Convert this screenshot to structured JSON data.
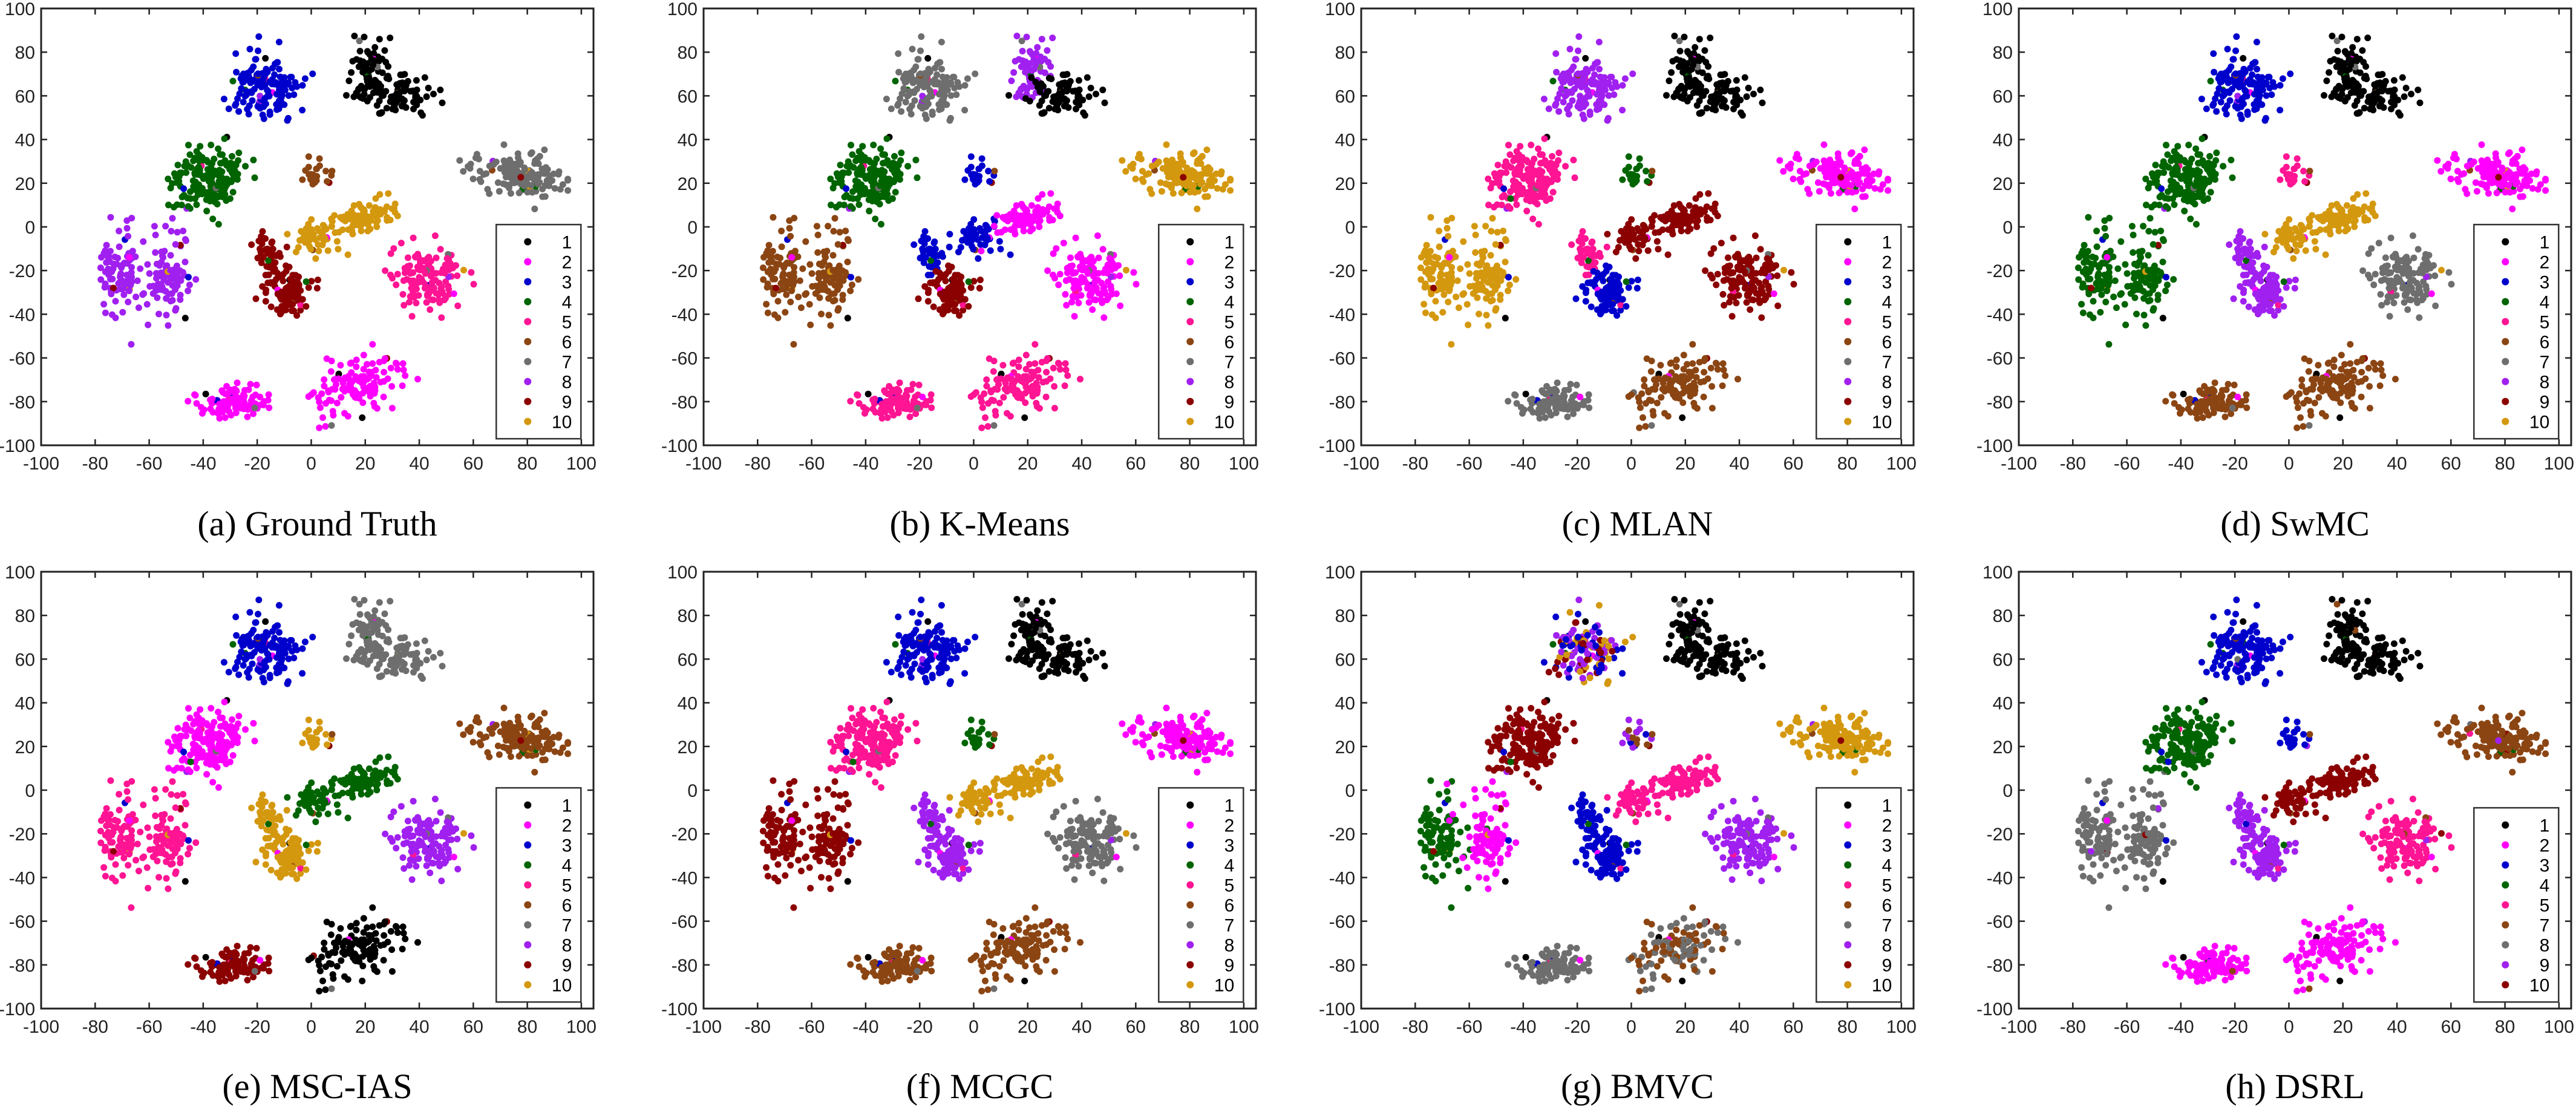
{
  "shared_embedding": {
    "note_units": "t-SNE coordinates",
    "clusters": {
      "R1a": {
        "center": [
          21,
          71
        ],
        "spread": [
          5,
          9
        ],
        "rotation": 0,
        "count": 70
      },
      "R1b": {
        "center": [
          33,
          60
        ],
        "spread": [
          7,
          6
        ],
        "rotation": 0,
        "count": 80
      },
      "R2": {
        "center": [
          -17,
          64
        ],
        "spread": [
          7,
          8
        ],
        "rotation": 0,
        "count": 140
      },
      "R3": {
        "center": [
          76,
          24
        ],
        "spread": [
          11,
          6
        ],
        "rotation": -12,
        "count": 150
      },
      "R4": {
        "center": [
          -38,
          21
        ],
        "spread": [
          8,
          9
        ],
        "rotation": -20,
        "count": 170
      },
      "R5": {
        "center": [
          1,
          25
        ],
        "spread": [
          3.5,
          3.5
        ],
        "rotation": 0,
        "count": 22
      },
      "R6a": {
        "center": [
          2,
          -4
        ],
        "spread": [
          5,
          4
        ],
        "rotation": 20,
        "count": 50
      },
      "R6b": {
        "center": [
          20,
          4
        ],
        "spread": [
          8,
          4
        ],
        "rotation": 25,
        "count": 80
      },
      "R7": {
        "center": [
          43,
          -22
        ],
        "spread": [
          8,
          9
        ],
        "rotation": 0,
        "count": 140
      },
      "R8a": {
        "center": [
          -16,
          -12
        ],
        "spread": [
          3.5,
          5
        ],
        "rotation": 0,
        "count": 40
      },
      "R8b": {
        "center": [
          -8,
          -31
        ],
        "spread": [
          5,
          6
        ],
        "rotation": 0,
        "count": 100
      },
      "R9a": {
        "center": [
          -70,
          -20
        ],
        "spread": [
          6,
          12
        ],
        "rotation": 0,
        "count": 90
      },
      "R9b": {
        "center": [
          -53,
          -22
        ],
        "spread": [
          6,
          12
        ],
        "rotation": 0,
        "count": 90
      },
      "R10a": {
        "center": [
          -28,
          -80
        ],
        "spread": [
          9,
          4
        ],
        "rotation": 10,
        "count": 100
      },
      "R10b": {
        "center": [
          17,
          -72
        ],
        "spread": [
          11,
          7
        ],
        "rotation": 35,
        "count": 120
      }
    }
  },
  "chart_data": [
    {
      "type": "scatter",
      "caption": "(a) Ground Truth",
      "xlim": [
        -100,
        100
      ],
      "ylim": [
        -100,
        100
      ],
      "xticks": [
        "-100",
        "-80",
        "-60",
        "-40",
        "-20",
        "0",
        "20",
        "40",
        "60",
        "80",
        "100"
      ],
      "yticks": [
        "100",
        "80",
        "60",
        "40",
        "20",
        "0",
        "-20",
        "-40",
        "-60",
        "-80",
        "-100"
      ],
      "grid": false,
      "legend": {
        "placement": "bottom-right",
        "entries": [
          {
            "label": "1",
            "color": "#000000"
          },
          {
            "label": "2",
            "color": "#ff00ff"
          },
          {
            "label": "3",
            "color": "#0000cd"
          },
          {
            "label": "4",
            "color": "#006400"
          },
          {
            "label": "5",
            "color": "#ff1493"
          },
          {
            "label": "6",
            "color": "#8b4513"
          },
          {
            "label": "7",
            "color": "#6e6e6e"
          },
          {
            "label": "8",
            "color": "#a020f0"
          },
          {
            "label": "9",
            "color": "#8b0000"
          },
          {
            "label": "10",
            "color": "#d4980f"
          }
        ]
      },
      "cluster_labels": {
        "R1a": "1",
        "R1b": "1",
        "R2": "3",
        "R3": "7",
        "R4": "4",
        "R5": "6",
        "R6a": "10",
        "R6b": "10",
        "R7": "5",
        "R8a": "9",
        "R8b": "9",
        "R9a": "8",
        "R9b": "8",
        "R10a": "2",
        "R10b": "2"
      }
    },
    {
      "type": "scatter",
      "caption": "(b) K-Means",
      "xlim": [
        -100,
        100
      ],
      "ylim": [
        -100,
        100
      ],
      "xticks": [
        "-100",
        "-80",
        "-60",
        "-40",
        "-20",
        "0",
        "20",
        "40",
        "60",
        "80",
        "100"
      ],
      "yticks": [
        "100",
        "80",
        "60",
        "40",
        "20",
        "0",
        "-20",
        "-40",
        "-60",
        "-80",
        "-100"
      ],
      "grid": false,
      "legend": {
        "placement": "bottom-right",
        "entries": [
          {
            "label": "1",
            "color": "#000000"
          },
          {
            "label": "2",
            "color": "#ff00ff"
          },
          {
            "label": "3",
            "color": "#0000cd"
          },
          {
            "label": "4",
            "color": "#006400"
          },
          {
            "label": "5",
            "color": "#ff1493"
          },
          {
            "label": "6",
            "color": "#8b4513"
          },
          {
            "label": "7",
            "color": "#6e6e6e"
          },
          {
            "label": "8",
            "color": "#a020f0"
          },
          {
            "label": "9",
            "color": "#8b0000"
          },
          {
            "label": "10",
            "color": "#d4980f"
          }
        ]
      },
      "cluster_labels": {
        "R1a": "8",
        "R1b": "1",
        "R2": "7",
        "R3": "10",
        "R4": "4",
        "R5": "3",
        "R6a": "3",
        "R6b": "2",
        "R7": "2",
        "R8a": "3",
        "R8b": "9",
        "R9a": "6",
        "R9b": "6",
        "R10a": "5",
        "R10b": "5"
      }
    },
    {
      "type": "scatter",
      "caption": "(c) MLAN",
      "xlim": [
        -100,
        100
      ],
      "ylim": [
        -100,
        100
      ],
      "xticks": [
        "-100",
        "-80",
        "-60",
        "-40",
        "-20",
        "0",
        "20",
        "40",
        "60",
        "80",
        "100"
      ],
      "yticks": [
        "100",
        "80",
        "60",
        "40",
        "20",
        "0",
        "-20",
        "-40",
        "-60",
        "-80",
        "-100"
      ],
      "grid": false,
      "legend": {
        "placement": "bottom-right",
        "entries": [
          {
            "label": "1",
            "color": "#000000"
          },
          {
            "label": "2",
            "color": "#ff00ff"
          },
          {
            "label": "3",
            "color": "#0000cd"
          },
          {
            "label": "4",
            "color": "#006400"
          },
          {
            "label": "5",
            "color": "#ff1493"
          },
          {
            "label": "6",
            "color": "#8b4513"
          },
          {
            "label": "7",
            "color": "#6e6e6e"
          },
          {
            "label": "8",
            "color": "#a020f0"
          },
          {
            "label": "9",
            "color": "#8b0000"
          },
          {
            "label": "10",
            "color": "#d4980f"
          }
        ]
      },
      "cluster_labels": {
        "R1a": "1",
        "R1b": "1",
        "R2": "8",
        "R3": "2",
        "R4": "5",
        "R5": "4",
        "R6a": "9",
        "R6b": "9",
        "R7": "9",
        "R8a": "5",
        "R8b": "3",
        "R9a": "10",
        "R9b": "10",
        "R10a": "7",
        "R10b": "6"
      }
    },
    {
      "type": "scatter",
      "caption": "(d) SwMC",
      "xlim": [
        -100,
        100
      ],
      "ylim": [
        -100,
        100
      ],
      "xticks": [
        "-100",
        "-80",
        "-60",
        "-40",
        "-20",
        "0",
        "20",
        "40",
        "60",
        "80",
        "100"
      ],
      "yticks": [
        "100",
        "80",
        "60",
        "40",
        "20",
        "0",
        "-20",
        "-40",
        "-60",
        "-80",
        "-100"
      ],
      "grid": false,
      "legend": {
        "placement": "bottom-right",
        "entries": [
          {
            "label": "1",
            "color": "#000000"
          },
          {
            "label": "2",
            "color": "#ff00ff"
          },
          {
            "label": "3",
            "color": "#0000cd"
          },
          {
            "label": "4",
            "color": "#006400"
          },
          {
            "label": "5",
            "color": "#ff1493"
          },
          {
            "label": "6",
            "color": "#8b4513"
          },
          {
            "label": "7",
            "color": "#6e6e6e"
          },
          {
            "label": "8",
            "color": "#a020f0"
          },
          {
            "label": "9",
            "color": "#8b0000"
          },
          {
            "label": "10",
            "color": "#d4980f"
          }
        ]
      },
      "cluster_labels": {
        "R1a": "1",
        "R1b": "1",
        "R2": "3",
        "R3": "2",
        "R4": "4",
        "R5": "5",
        "R6a": "10",
        "R6b": "10",
        "R7": "7",
        "R8a": "8",
        "R8b": "8",
        "R9a": "4",
        "R9b": "4",
        "R10a": "6",
        "R10b": "6"
      }
    },
    {
      "type": "scatter",
      "caption": "(e) MSC-IAS",
      "xlim": [
        -100,
        100
      ],
      "ylim": [
        -100,
        100
      ],
      "xticks": [
        "-100",
        "-80",
        "-60",
        "-40",
        "-20",
        "0",
        "20",
        "40",
        "60",
        "80",
        "100"
      ],
      "yticks": [
        "100",
        "80",
        "60",
        "40",
        "20",
        "0",
        "-20",
        "-40",
        "-60",
        "-80",
        "-100"
      ],
      "grid": false,
      "legend": {
        "placement": "bottom-right",
        "entries": [
          {
            "label": "1",
            "color": "#000000"
          },
          {
            "label": "2",
            "color": "#ff00ff"
          },
          {
            "label": "3",
            "color": "#0000cd"
          },
          {
            "label": "4",
            "color": "#006400"
          },
          {
            "label": "5",
            "color": "#ff1493"
          },
          {
            "label": "6",
            "color": "#8b4513"
          },
          {
            "label": "7",
            "color": "#6e6e6e"
          },
          {
            "label": "8",
            "color": "#a020f0"
          },
          {
            "label": "9",
            "color": "#8b0000"
          },
          {
            "label": "10",
            "color": "#d4980f"
          }
        ]
      },
      "cluster_labels": {
        "R1a": "7",
        "R1b": "7",
        "R2": "3",
        "R3": "6",
        "R4": "2",
        "R5": "10",
        "R6a": "4",
        "R6b": "4",
        "R7": "8",
        "R8a": "10",
        "R8b": "10",
        "R9a": "5",
        "R9b": "5",
        "R10a": "9",
        "R10b": "1"
      }
    },
    {
      "type": "scatter",
      "caption": "(f) MCGC",
      "xlim": [
        -100,
        100
      ],
      "ylim": [
        -100,
        100
      ],
      "xticks": [
        "-100",
        "-80",
        "-60",
        "-40",
        "-20",
        "0",
        "20",
        "40",
        "60",
        "80",
        "100"
      ],
      "yticks": [
        "100",
        "80",
        "60",
        "40",
        "20",
        "0",
        "-20",
        "-40",
        "-60",
        "-80",
        "-100"
      ],
      "grid": false,
      "legend": {
        "placement": "bottom-right",
        "entries": [
          {
            "label": "1",
            "color": "#000000"
          },
          {
            "label": "2",
            "color": "#ff00ff"
          },
          {
            "label": "3",
            "color": "#0000cd"
          },
          {
            "label": "4",
            "color": "#006400"
          },
          {
            "label": "5",
            "color": "#ff1493"
          },
          {
            "label": "6",
            "color": "#8b4513"
          },
          {
            "label": "7",
            "color": "#6e6e6e"
          },
          {
            "label": "8",
            "color": "#a020f0"
          },
          {
            "label": "9",
            "color": "#8b0000"
          },
          {
            "label": "10",
            "color": "#d4980f"
          }
        ]
      },
      "cluster_labels": {
        "R1a": "1",
        "R1b": "1",
        "R2": "3",
        "R3": "2",
        "R4": "5",
        "R5": "4",
        "R6a": "10",
        "R6b": "10",
        "R7": "7",
        "R8a": "8",
        "R8b": "8",
        "R9a": "9",
        "R9b": "9",
        "R10a": "6",
        "R10b": "6"
      }
    },
    {
      "type": "scatter",
      "caption": "(g) BMVC",
      "xlim": [
        -100,
        100
      ],
      "ylim": [
        -100,
        100
      ],
      "xticks": [
        "-100",
        "-80",
        "-60",
        "-40",
        "-20",
        "0",
        "20",
        "40",
        "60",
        "80",
        "100"
      ],
      "yticks": [
        "100",
        "80",
        "60",
        "40",
        "20",
        "0",
        "-20",
        "-40",
        "-60",
        "-80",
        "-100"
      ],
      "grid": false,
      "legend": {
        "placement": "bottom-right",
        "entries": [
          {
            "label": "1",
            "color": "#000000"
          },
          {
            "label": "2",
            "color": "#ff00ff"
          },
          {
            "label": "3",
            "color": "#0000cd"
          },
          {
            "label": "4",
            "color": "#006400"
          },
          {
            "label": "5",
            "color": "#ff1493"
          },
          {
            "label": "6",
            "color": "#8b4513"
          },
          {
            "label": "7",
            "color": "#6e6e6e"
          },
          {
            "label": "8",
            "color": "#a020f0"
          },
          {
            "label": "9",
            "color": "#8b0000"
          },
          {
            "label": "10",
            "color": "#d4980f"
          }
        ]
      },
      "cluster_labels": {
        "R1a": "1",
        "R1b": "1",
        "R2": [
          "9",
          "10",
          "3",
          "8"
        ],
        "R3": "10",
        "R4": "9",
        "R5": [
          "8",
          "6",
          "3"
        ],
        "R6a": "5",
        "R6b": "5",
        "R7": "8",
        "R8a": "3",
        "R8b": "3",
        "R9a": "4",
        "R9b": "2",
        "R10a": "7",
        "R10b": [
          "6",
          "7"
        ]
      }
    },
    {
      "type": "scatter",
      "caption": "(h) DSRL",
      "xlim": [
        -100,
        100
      ],
      "ylim": [
        -100,
        100
      ],
      "xticks": [
        "-100",
        "-80",
        "-60",
        "-40",
        "-20",
        "0",
        "20",
        "40",
        "60",
        "80",
        "100"
      ],
      "yticks": [
        "100",
        "80",
        "60",
        "40",
        "20",
        "0",
        "-20",
        "-40",
        "-60",
        "-80",
        "-100"
      ],
      "grid": false,
      "legend": {
        "placement": "bottom-right",
        "entries": [
          {
            "label": "1",
            "color": "#000000"
          },
          {
            "label": "2",
            "color": "#ff00ff"
          },
          {
            "label": "3",
            "color": "#0000cd"
          },
          {
            "label": "4",
            "color": "#006400"
          },
          {
            "label": "5",
            "color": "#ff1493"
          },
          {
            "label": "7",
            "color": "#8b4513"
          },
          {
            "label": "8",
            "color": "#6e6e6e"
          },
          {
            "label": "9",
            "color": "#a020f0"
          },
          {
            "label": "10",
            "color": "#8b0000"
          }
        ]
      },
      "cluster_labels": {
        "R1a": "1",
        "R1b": "1",
        "R2": "3",
        "R3": "7",
        "R4": "4",
        "R5": "3",
        "R6a": "10",
        "R6b": "10",
        "R7": "5",
        "R8a": "9",
        "R8b": "9",
        "R9a": "8",
        "R9b": "8",
        "R10a": "2",
        "R10b": "2"
      }
    }
  ]
}
